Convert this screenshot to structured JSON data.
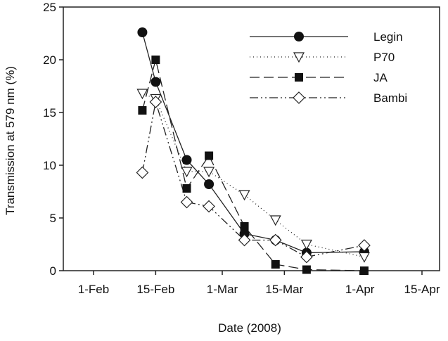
{
  "chart_data": {
    "type": "line",
    "title": "",
    "xlabel": "Date (2008)",
    "ylabel": "Transmission at 579 nm (%)",
    "x_day_of_year": [
      43,
      46,
      53,
      58,
      66,
      73,
      80,
      93
    ],
    "xlim_day_of_year": [
      25,
      110
    ],
    "ylim": [
      0,
      25
    ],
    "yticks": [
      0,
      5,
      10,
      15,
      20,
      25
    ],
    "xticks": [
      {
        "label": "1-Feb",
        "day": 32
      },
      {
        "label": "15-Feb",
        "day": 46
      },
      {
        "label": "1-Mar",
        "day": 61
      },
      {
        "label": "15-Mar",
        "day": 75
      },
      {
        "label": "1-Apr",
        "day": 92
      },
      {
        "label": "15-Apr",
        "day": 106
      }
    ],
    "legend_position": "top-right",
    "grid": false,
    "series": [
      {
        "name": "Legin",
        "marker": "circle-filled",
        "dash": "",
        "values": [
          22.6,
          17.9,
          10.5,
          8.2,
          3.5,
          2.9,
          1.7,
          1.8
        ]
      },
      {
        "name": "P70",
        "marker": "triangle-down-open",
        "dash": "1,4",
        "values": [
          16.8,
          16.3,
          9.4,
          9.4,
          7.2,
          4.8,
          2.5,
          1.3
        ]
      },
      {
        "name": "JA",
        "marker": "square-filled",
        "dash": "14,6",
        "values": [
          15.2,
          20.0,
          7.8,
          10.9,
          4.2,
          0.6,
          0.1,
          0.0
        ]
      },
      {
        "name": "Bambi",
        "marker": "diamond-open",
        "dash": "12,4,2,4,2,4",
        "values": [
          9.3,
          16.0,
          6.5,
          6.1,
          2.9,
          2.9,
          1.3,
          2.4
        ]
      }
    ]
  }
}
